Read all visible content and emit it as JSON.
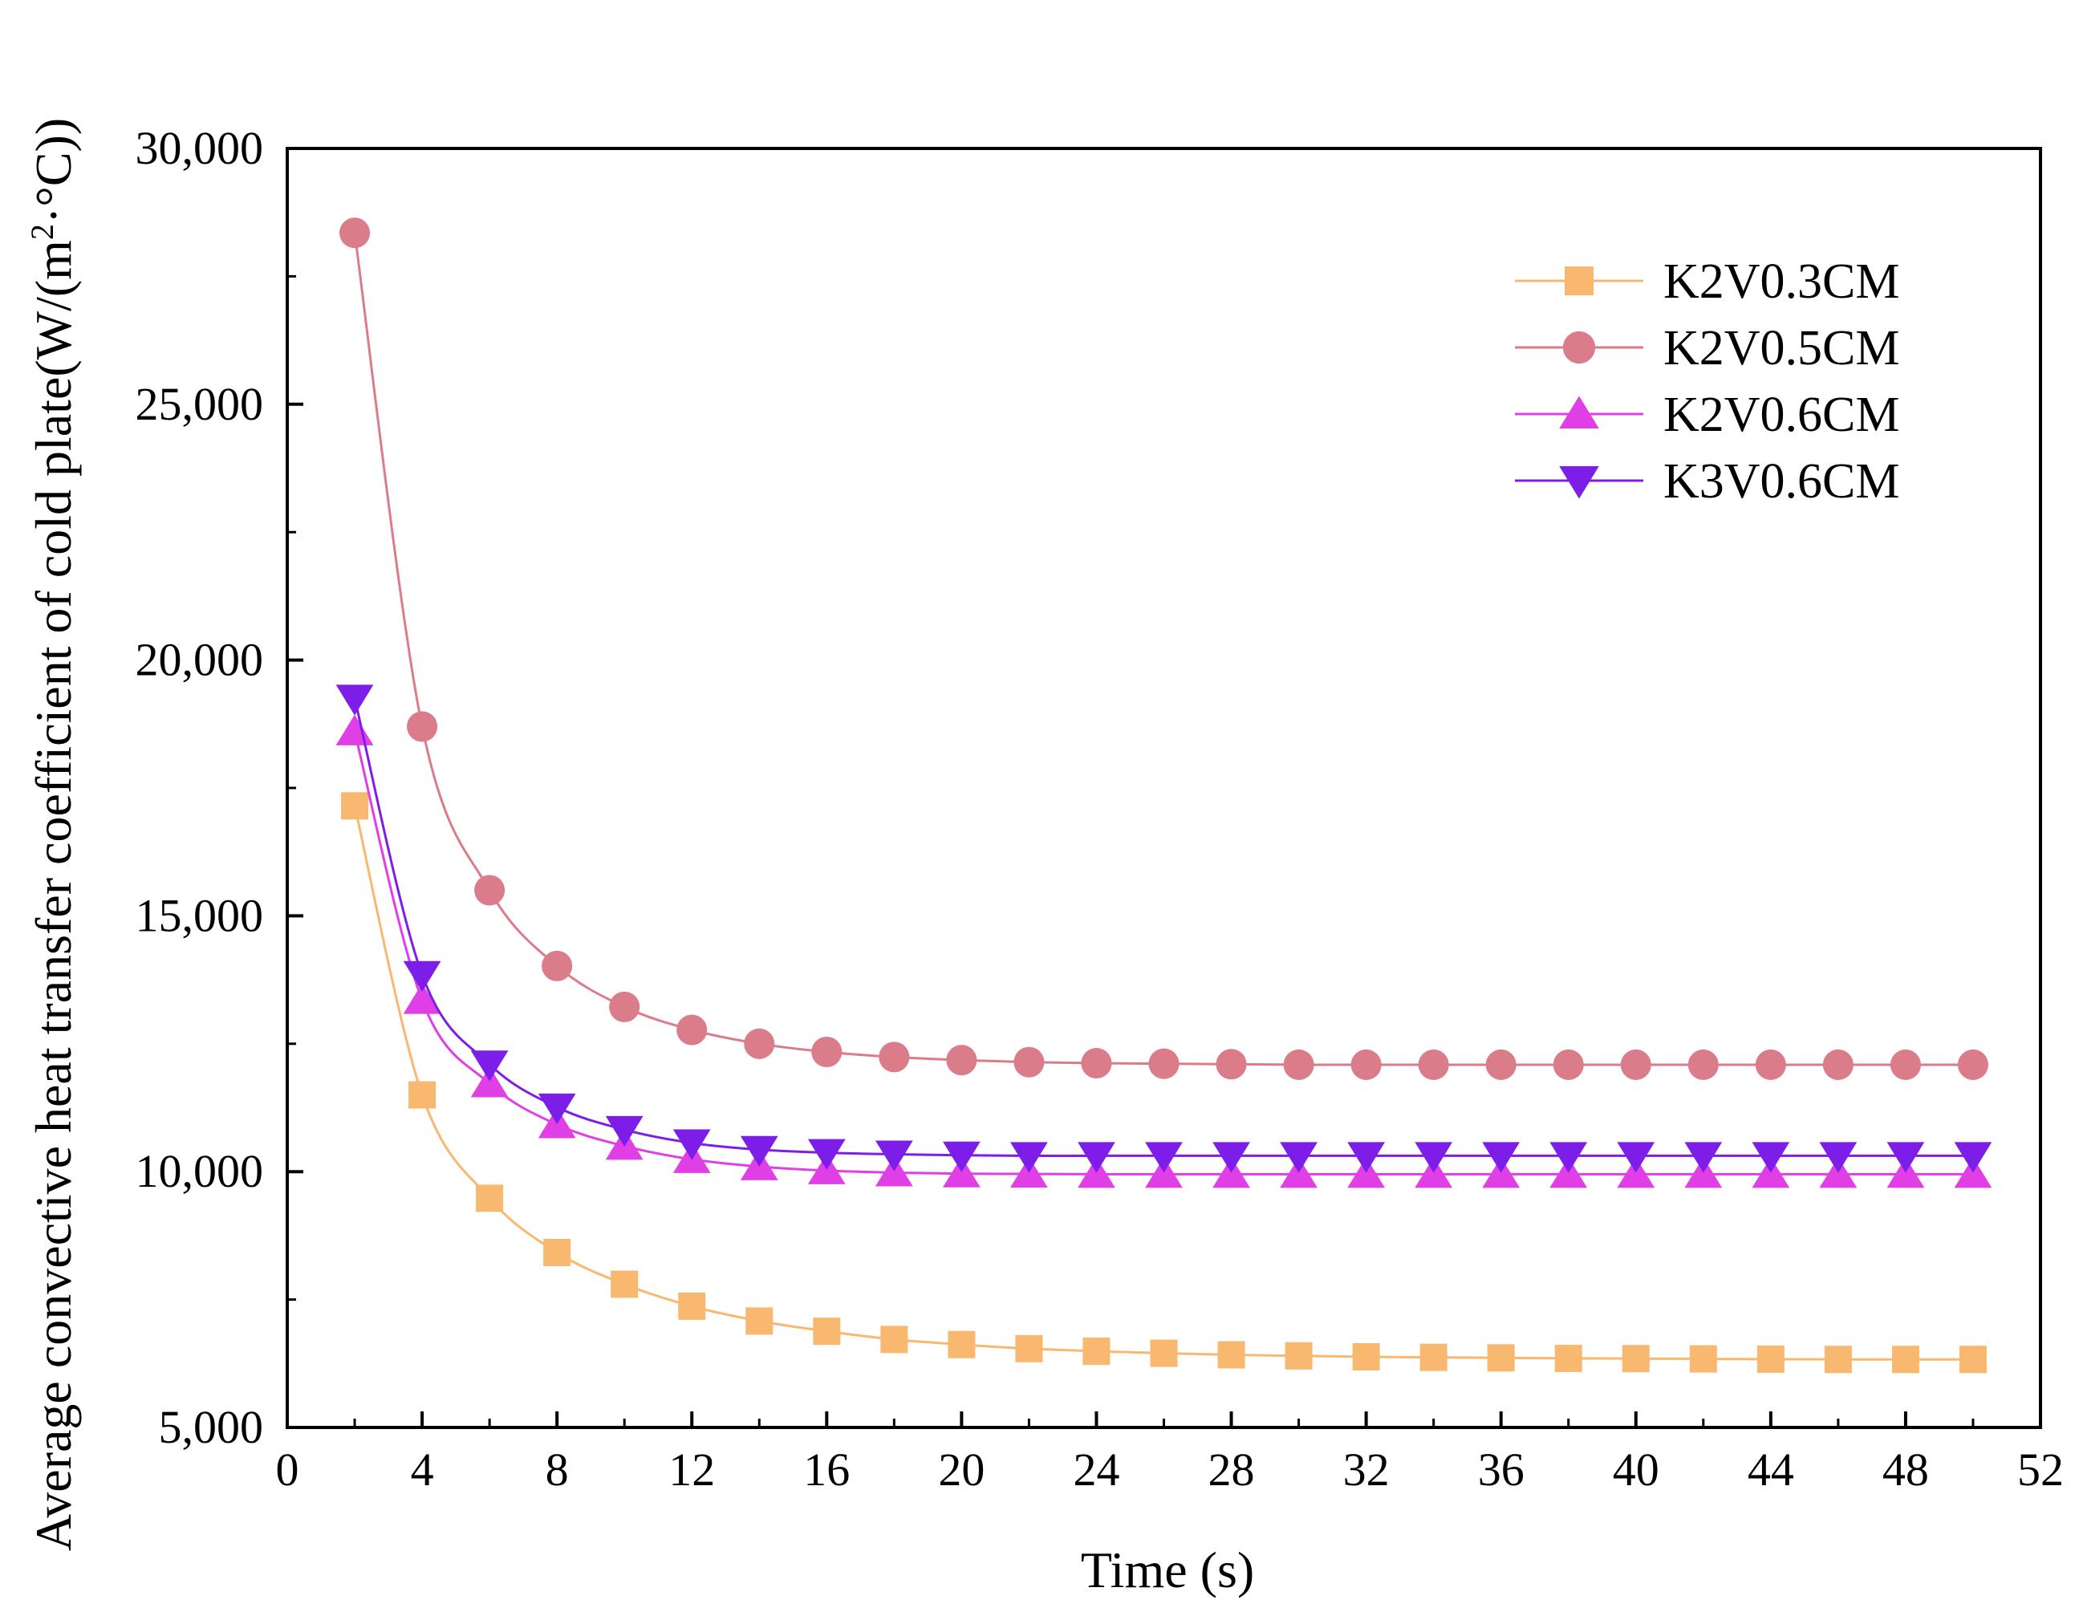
{
  "chart_data": {
    "type": "line",
    "title": "",
    "xlabel": "Time (s)",
    "ylabel_parts": {
      "prefix": "Average convective heat transfer coefficient of cold plate(W/(m",
      "superscript": "2",
      "suffix": "·°C))"
    },
    "xlim": [
      0,
      52
    ],
    "ylim": [
      5000,
      30000
    ],
    "x_ticks": [
      0,
      4,
      8,
      12,
      16,
      20,
      24,
      28,
      32,
      36,
      40,
      44,
      48,
      52
    ],
    "x_tick_labels": [
      "0",
      "4",
      "8",
      "12",
      "16",
      "20",
      "24",
      "28",
      "32",
      "36",
      "40",
      "44",
      "48",
      "52"
    ],
    "y_ticks": [
      5000,
      10000,
      15000,
      20000,
      25000,
      30000
    ],
    "y_tick_labels": [
      "5,000",
      "10,000",
      "15,000",
      "20,000",
      "25,000",
      "30,000"
    ],
    "grid": false,
    "legend_position": "top-right",
    "x": [
      2,
      4,
      6,
      8,
      10,
      12,
      14,
      16,
      18,
      20,
      22,
      24,
      26,
      28,
      30,
      32,
      34,
      36,
      38,
      40,
      42,
      44,
      46,
      48,
      50
    ],
    "series": [
      {
        "name": "K2V0.3CM",
        "marker": "square",
        "color": "#f9b870",
        "values": [
          17150,
          11500,
          9480,
          8420,
          7800,
          7370,
          7080,
          6880,
          6720,
          6620,
          6540,
          6490,
          6450,
          6420,
          6400,
          6380,
          6370,
          6360,
          6350,
          6345,
          6340,
          6335,
          6330,
          6330,
          6330
        ]
      },
      {
        "name": "K2V0.5CM",
        "marker": "circle",
        "color": "#da7c8a",
        "values": [
          28350,
          18700,
          15500,
          14020,
          13220,
          12770,
          12500,
          12340,
          12240,
          12180,
          12140,
          12120,
          12110,
          12100,
          12090,
          12090,
          12090,
          12090,
          12090,
          12090,
          12090,
          12090,
          12090,
          12090,
          12090
        ]
      },
      {
        "name": "K2V0.6CM",
        "marker": "triangle-up",
        "color": "#e03fe6",
        "values": [
          18600,
          13350,
          11720,
          10920,
          10500,
          10240,
          10100,
          10020,
          9980,
          9960,
          9955,
          9950,
          9950,
          9950,
          9950,
          9950,
          9950,
          9950,
          9950,
          9950,
          9950,
          9950,
          9950,
          9950,
          9950
        ]
      },
      {
        "name": "K3V0.6CM",
        "marker": "triangle-down",
        "color": "#7d1ee8",
        "values": [
          19250,
          13850,
          12100,
          11260,
          10820,
          10560,
          10430,
          10370,
          10340,
          10320,
          10310,
          10310,
          10310,
          10310,
          10310,
          10310,
          10310,
          10310,
          10310,
          10310,
          10310,
          10310,
          10310,
          10310,
          10310
        ]
      }
    ]
  }
}
